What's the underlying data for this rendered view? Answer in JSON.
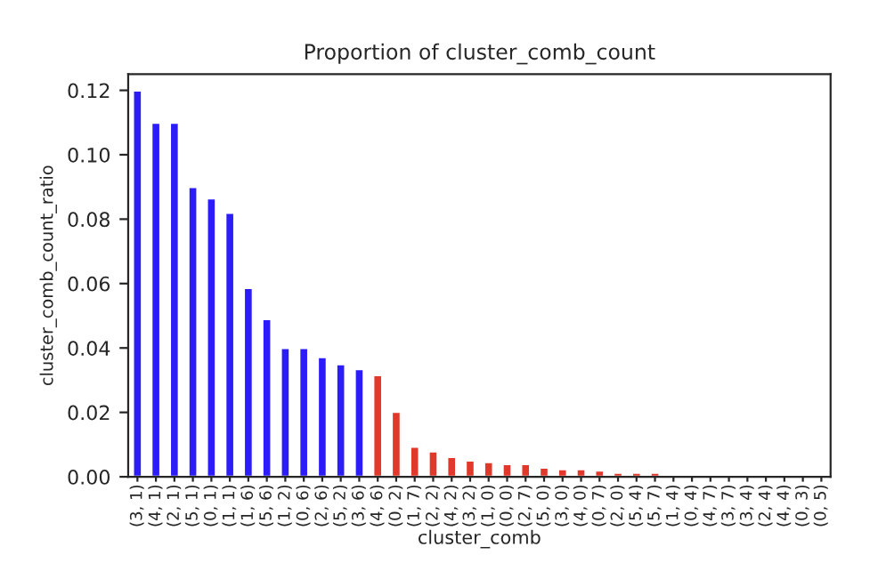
{
  "chart_data": {
    "type": "bar",
    "title": "Proportion of cluster_comb_count",
    "xlabel": "cluster_comb",
    "ylabel": "cluster_comb_count_ratio",
    "categories": [
      "(3, 1)",
      "(4, 1)",
      "(2, 1)",
      "(5, 1)",
      "(0, 1)",
      "(1, 1)",
      "(1, 6)",
      "(5, 6)",
      "(1, 2)",
      "(0, 6)",
      "(2, 6)",
      "(5, 2)",
      "(3, 6)",
      "(4, 6)",
      "(0, 2)",
      "(1, 7)",
      "(2, 2)",
      "(4, 2)",
      "(3, 2)",
      "(1, 0)",
      "(0, 0)",
      "(2, 7)",
      "(5, 0)",
      "(3, 0)",
      "(4, 0)",
      "(0, 7)",
      "(2, 0)",
      "(5, 4)",
      "(5, 7)",
      "(1, 4)",
      "(0, 4)",
      "(4, 7)",
      "(3, 7)",
      "(3, 4)",
      "(2, 4)",
      "(4, 4)",
      "(0, 3)",
      "(0, 5)"
    ],
    "values": [
      0.12,
      0.11,
      0.11,
      0.09,
      0.0865,
      0.082,
      0.0587,
      0.049,
      0.04,
      0.04,
      0.0372,
      0.035,
      0.0335,
      0.0316,
      0.0202,
      0.0094,
      0.0079,
      0.0062,
      0.0051,
      0.0046,
      0.004,
      0.004,
      0.0029,
      0.0024,
      0.0024,
      0.002,
      0.0013,
      0.0013,
      0.0013,
      0.0007,
      0.0007,
      0.0004,
      0.0004,
      0.0004,
      0.0004,
      0.0004,
      null,
      null
    ],
    "colors": [
      "#2b1cf8",
      "#2b1cf8",
      "#2b1cf8",
      "#2b1cf8",
      "#2b1cf8",
      "#2b1cf8",
      "#2b1cf8",
      "#2b1cf8",
      "#2b1cf8",
      "#2b1cf8",
      "#2b1cf8",
      "#2b1cf8",
      "#2b1cf8",
      "#e0392b",
      "#e0392b",
      "#e0392b",
      "#e0392b",
      "#e0392b",
      "#e0392b",
      "#e0392b",
      "#e0392b",
      "#e0392b",
      "#e0392b",
      "#e0392b",
      "#e0392b",
      "#e0392b",
      "#e0392b",
      "#e0392b",
      "#e0392b",
      "#e0392b",
      "#e0392b",
      "#e0392b",
      "#e0392b",
      "#e0392b",
      "#e0392b",
      "#e0392b",
      null,
      null
    ],
    "ylim": [
      0,
      0.125
    ],
    "yticks": [
      {
        "value": 0,
        "label": "0.00"
      },
      {
        "value": 0.02,
        "label": "0.02"
      },
      {
        "value": 0.04,
        "label": "0.04"
      },
      {
        "value": 0.06,
        "label": "0.06"
      },
      {
        "value": 0.08,
        "label": "0.08"
      },
      {
        "value": 0.1,
        "label": "0.10"
      },
      {
        "value": 0.12,
        "label": "0.12"
      }
    ],
    "grid": false,
    "legend": false
  }
}
